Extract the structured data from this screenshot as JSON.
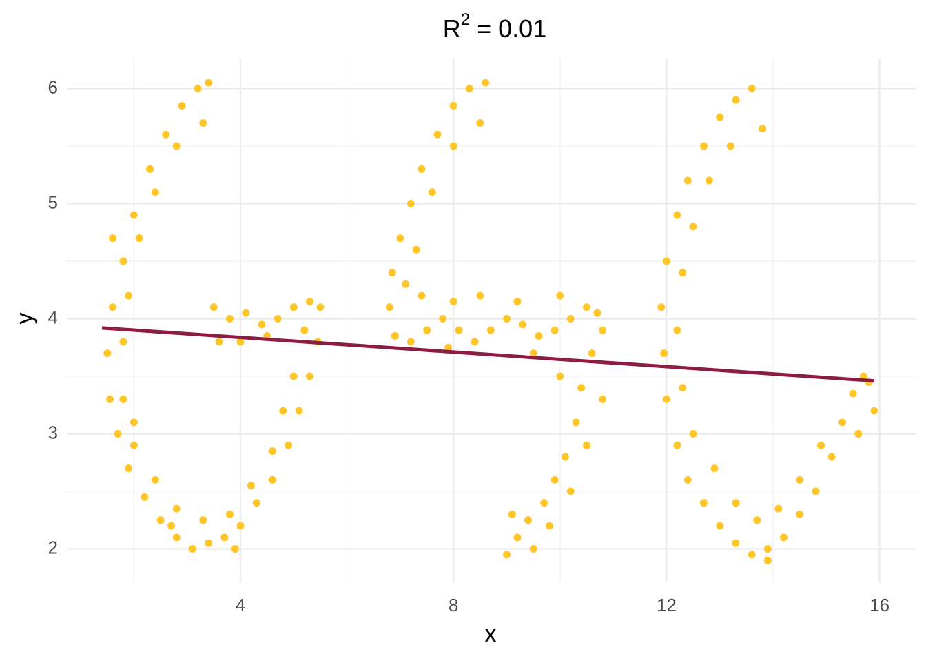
{
  "chart_data": {
    "type": "scatter",
    "title": {
      "base": "R",
      "superscript": "2",
      "text": "= 0.01"
    },
    "x_label": "x",
    "y_label": "y",
    "xlim": [
      0.74,
      16.69
    ],
    "ylim": [
      1.71,
      6.26
    ],
    "xticks": [
      4,
      8,
      12,
      16
    ],
    "yticks": [
      2,
      3,
      4,
      5,
      6
    ],
    "x_minor_grid": [
      2,
      6,
      10,
      14
    ],
    "y_minor_grid": [
      2.5,
      3.5,
      4.5,
      5.5
    ],
    "grid": true,
    "series": [
      {
        "color": "#FFC629",
        "x": [
          3.4,
          3.2,
          2.9,
          2.6,
          2.3,
          2.0,
          1.8,
          1.6,
          1.5,
          1.55,
          1.7,
          1.9,
          2.2,
          2.5,
          2.8,
          3.1,
          3.4,
          3.7,
          4.0,
          4.3,
          4.6,
          4.9,
          5.1,
          5.3,
          5.45,
          5.5,
          5.3,
          5.0,
          4.7,
          4.4,
          4.1,
          3.8,
          3.6,
          4.0,
          4.5,
          5.2,
          3.5,
          3.3,
          2.8,
          2.4,
          2.1,
          1.9,
          1.8,
          1.8,
          2.0,
          2.4,
          2.8,
          3.3,
          3.8,
          4.2,
          4.6,
          4.8,
          5.0,
          2.0,
          1.6,
          2.7,
          3.9,
          8.6,
          8.3,
          8.0,
          7.7,
          7.4,
          7.2,
          7.0,
          6.85,
          6.8,
          6.9,
          7.2,
          7.5,
          7.8,
          8.1,
          8.4,
          8.7,
          9.0,
          9.3,
          9.6,
          9.9,
          10.2,
          10.5,
          10.7,
          10.6,
          10.4,
          10.3,
          10.1,
          9.9,
          9.7,
          9.4,
          9.2,
          9.0,
          9.1,
          9.5,
          8.5,
          8.0,
          7.6,
          7.3,
          7.1,
          7.4,
          8.0,
          8.5,
          9.2,
          10.0,
          10.8,
          10.5,
          10.2,
          9.8,
          7.9,
          9.5,
          10.8,
          10.0,
          13.6,
          13.3,
          13.0,
          12.7,
          12.4,
          12.2,
          12.0,
          11.9,
          11.95,
          12.0,
          12.2,
          12.4,
          12.7,
          13.0,
          13.3,
          13.6,
          13.9,
          14.2,
          14.5,
          14.8,
          15.1,
          15.3,
          15.5,
          15.8,
          15.9,
          15.6,
          13.8,
          13.2,
          12.8,
          12.5,
          12.3,
          12.2,
          12.3,
          12.5,
          12.9,
          13.3,
          13.7,
          14.1,
          14.5,
          14.9,
          15.7,
          13.9
        ],
        "y": [
          6.05,
          6.0,
          5.85,
          5.6,
          5.3,
          4.9,
          4.5,
          4.1,
          3.7,
          3.3,
          3.0,
          2.7,
          2.45,
          2.25,
          2.1,
          2.0,
          2.05,
          2.1,
          2.2,
          2.4,
          2.6,
          2.9,
          3.2,
          3.5,
          3.8,
          4.1,
          4.15,
          4.1,
          4.0,
          3.95,
          4.05,
          4.0,
          3.8,
          3.8,
          3.85,
          3.9,
          4.1,
          5.7,
          5.5,
          5.1,
          4.7,
          4.2,
          3.8,
          3.3,
          2.9,
          2.6,
          2.35,
          2.25,
          2.3,
          2.55,
          2.85,
          3.2,
          3.5,
          3.1,
          4.7,
          2.2,
          2.0,
          6.05,
          6.0,
          5.85,
          5.6,
          5.3,
          5.0,
          4.7,
          4.4,
          4.1,
          3.85,
          3.8,
          3.9,
          4.0,
          3.9,
          3.8,
          3.9,
          4.0,
          3.95,
          3.85,
          3.9,
          4.0,
          4.1,
          4.05,
          3.7,
          3.4,
          3.1,
          2.8,
          2.6,
          2.4,
          2.25,
          2.1,
          1.95,
          2.3,
          2.0,
          5.7,
          5.5,
          5.1,
          4.6,
          4.3,
          4.2,
          4.15,
          4.2,
          4.15,
          4.2,
          3.9,
          2.9,
          2.5,
          2.2,
          3.75,
          3.7,
          3.3,
          3.5,
          6.0,
          5.9,
          5.75,
          5.5,
          5.2,
          4.9,
          4.5,
          4.1,
          3.7,
          3.3,
          2.9,
          2.6,
          2.4,
          2.2,
          2.05,
          1.95,
          2.0,
          2.1,
          2.3,
          2.5,
          2.8,
          3.1,
          3.35,
          3.45,
          3.2,
          3.0,
          5.65,
          5.5,
          5.2,
          4.8,
          4.4,
          3.9,
          3.4,
          3.0,
          2.7,
          2.4,
          2.25,
          2.35,
          2.6,
          2.9,
          3.5,
          1.9
        ]
      },
      {
        "color": "#8C1D40",
        "x": [
          1.4,
          15.9
        ],
        "y": [
          3.92,
          3.46
        ]
      }
    ]
  }
}
